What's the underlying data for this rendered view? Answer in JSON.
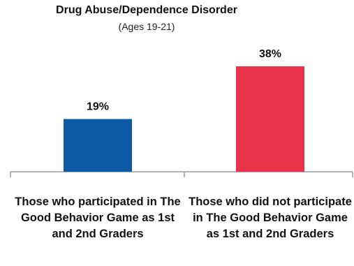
{
  "chart_data": {
    "type": "bar",
    "title": "Drug Abuse/Dependence Disorder",
    "subtitle": "(Ages 19-21)",
    "categories": [
      "Those who participated in The Good Behavior Game as 1st and 2nd Graders",
      "Those who did not participate in The Good Behavior Game as 1st and 2nd Graders"
    ],
    "values": [
      19,
      38
    ],
    "data_labels": [
      "19%",
      "38%"
    ],
    "colors": [
      "#0b5aa3",
      "#e8334a"
    ],
    "ylim": [
      0,
      45
    ],
    "grid": false,
    "legend": "none"
  }
}
